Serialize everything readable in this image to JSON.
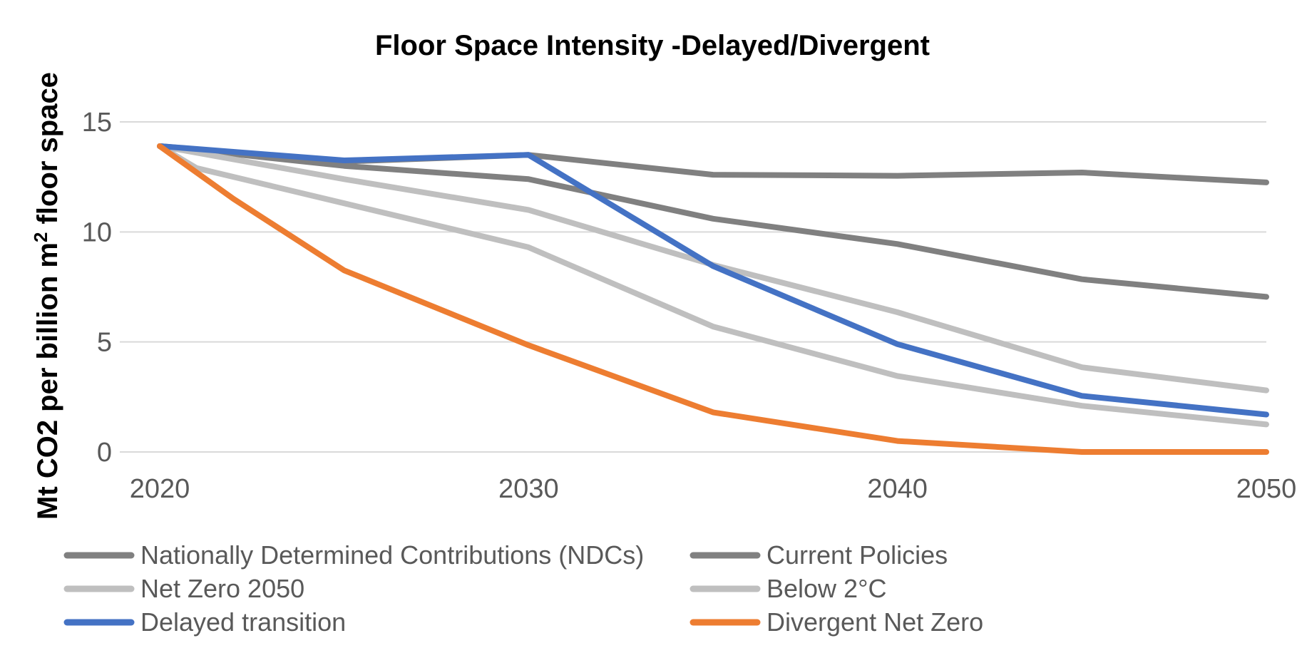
{
  "chart_data": {
    "type": "line",
    "title": "Floor Space Intensity -Delayed/Divergent",
    "ylabel": "Mt CO2 per billion m",
    "ylabel_superscript": "2",
    "ylabel_suffix": " floor space",
    "xlabel": "",
    "xlim": [
      2020,
      2050
    ],
    "ylim": [
      0,
      15
    ],
    "x_ticks": [
      2020,
      2030,
      2040,
      2050
    ],
    "y_ticks": [
      0,
      5,
      10,
      15
    ],
    "grid": true,
    "legend_position": "bottom",
    "series": [
      {
        "name": "Nationally Determined Contributions (NDCs)",
        "color": "#808080",
        "x": [
          2020,
          2025,
          2030,
          2035,
          2040,
          2045,
          2050
        ],
        "values": [
          13.9,
          13.0,
          12.4,
          10.6,
          9.45,
          7.85,
          7.05
        ]
      },
      {
        "name": "Current Policies",
        "color": "#808080",
        "x": [
          2020,
          2025,
          2030,
          2035,
          2040,
          2045,
          2050
        ],
        "values": [
          13.9,
          13.2,
          13.5,
          12.6,
          12.55,
          12.7,
          12.25
        ]
      },
      {
        "name": "Net Zero 2050",
        "color": "#bfbfbf",
        "x": [
          2020,
          2021,
          2025,
          2030,
          2035,
          2040,
          2045,
          2050
        ],
        "values": [
          13.9,
          12.9,
          11.3,
          9.3,
          5.7,
          3.45,
          2.1,
          1.25
        ]
      },
      {
        "name": "Below 2°C",
        "color": "#bfbfbf",
        "x": [
          2020,
          2025,
          2030,
          2035,
          2040,
          2045,
          2050
        ],
        "values": [
          13.9,
          12.4,
          11.0,
          8.5,
          6.35,
          3.85,
          2.8
        ]
      },
      {
        "name": "Delayed transition",
        "color": "#4472c4",
        "x": [
          2020,
          2025,
          2030,
          2035,
          2040,
          2045,
          2050
        ],
        "values": [
          13.9,
          13.25,
          13.5,
          8.45,
          4.9,
          2.55,
          1.7
        ]
      },
      {
        "name": "Divergent Net Zero",
        "color": "#ed7d31",
        "x": [
          2020,
          2022,
          2025,
          2030,
          2035,
          2040,
          2045,
          2050
        ],
        "values": [
          13.9,
          11.5,
          8.25,
          4.85,
          1.8,
          0.5,
          0.0,
          0.0
        ]
      }
    ]
  }
}
